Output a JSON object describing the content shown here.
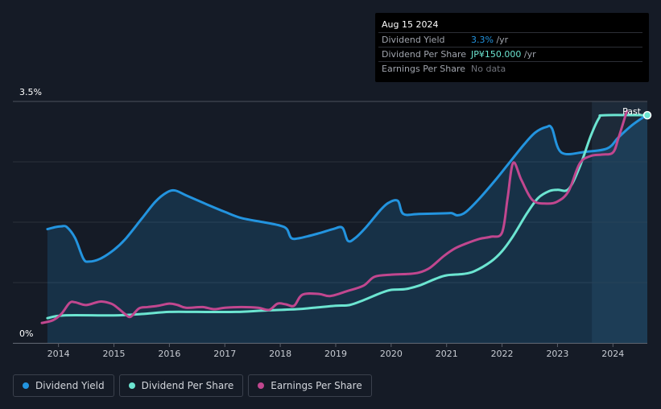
{
  "tooltip": {
    "date": "Aug 15 2024",
    "rows": [
      {
        "label": "Dividend Yield",
        "value": "3.3%",
        "unit": " /yr",
        "color": "#2394df"
      },
      {
        "label": "Dividend Per Share",
        "value": "JP¥150.000",
        "unit": " /yr",
        "color": "#6ce5d1"
      },
      {
        "label": "Earnings Per Share",
        "value": "No data",
        "unit": "",
        "color": "#70737b"
      }
    ]
  },
  "legend": [
    {
      "label": "Dividend Yield",
      "color": "#2394df"
    },
    {
      "label": "Dividend Per Share",
      "color": "#6ce5d1"
    },
    {
      "label": "Earnings Per Share",
      "color": "#c1478f"
    }
  ],
  "chart_data": {
    "type": "line",
    "title": "",
    "xlabel": "",
    "ylabel": "",
    "xlim": [
      2013.7,
      2024.62
    ],
    "ylim": [
      0,
      3.5
    ],
    "y_tick_labels": [
      {
        "value": 0,
        "label": "0%"
      },
      {
        "value": 3.5,
        "label": "3.5%"
      }
    ],
    "x_ticks": [
      2014,
      2015,
      2016,
      2017,
      2018,
      2019,
      2020,
      2021,
      2022,
      2023,
      2024
    ],
    "past_label": "Past",
    "past_start": 2023.62,
    "series": [
      {
        "name": "Dividend Yield",
        "color": "#2394df",
        "area": true,
        "points": [
          [
            2013.8,
            1.65
          ],
          [
            2013.95,
            1.68
          ],
          [
            2014.05,
            1.69
          ],
          [
            2014.15,
            1.68
          ],
          [
            2014.3,
            1.52
          ],
          [
            2014.45,
            1.22
          ],
          [
            2014.55,
            1.18
          ],
          [
            2014.75,
            1.22
          ],
          [
            2015.0,
            1.35
          ],
          [
            2015.2,
            1.5
          ],
          [
            2015.5,
            1.8
          ],
          [
            2015.75,
            2.05
          ],
          [
            2015.95,
            2.18
          ],
          [
            2016.1,
            2.21
          ],
          [
            2016.3,
            2.14
          ],
          [
            2016.7,
            2.0
          ],
          [
            2017.0,
            1.9
          ],
          [
            2017.3,
            1.81
          ],
          [
            2017.7,
            1.75
          ],
          [
            2018.0,
            1.7
          ],
          [
            2018.12,
            1.65
          ],
          [
            2018.2,
            1.52
          ],
          [
            2018.35,
            1.52
          ],
          [
            2018.7,
            1.59
          ],
          [
            2018.95,
            1.65
          ],
          [
            2019.12,
            1.67
          ],
          [
            2019.22,
            1.48
          ],
          [
            2019.35,
            1.52
          ],
          [
            2019.55,
            1.68
          ],
          [
            2019.8,
            1.92
          ],
          [
            2019.95,
            2.03
          ],
          [
            2020.12,
            2.06
          ],
          [
            2020.22,
            1.87
          ],
          [
            2020.5,
            1.87
          ],
          [
            2021.0,
            1.88
          ],
          [
            2021.1,
            1.88
          ],
          [
            2021.2,
            1.85
          ],
          [
            2021.35,
            1.9
          ],
          [
            2021.6,
            2.1
          ],
          [
            2021.9,
            2.38
          ],
          [
            2022.1,
            2.58
          ],
          [
            2022.4,
            2.88
          ],
          [
            2022.6,
            3.05
          ],
          [
            2022.8,
            3.13
          ],
          [
            2022.9,
            3.11
          ],
          [
            2023.07,
            2.76
          ],
          [
            2023.5,
            2.77
          ],
          [
            2023.9,
            2.82
          ],
          [
            2024.1,
            2.98
          ],
          [
            2024.35,
            3.16
          ],
          [
            2024.62,
            3.31
          ]
        ]
      },
      {
        "name": "Dividend Per Share",
        "color": "#6ce5d1",
        "area": false,
        "points": [
          [
            2013.8,
            0.36
          ],
          [
            2014.1,
            0.4
          ],
          [
            2015.0,
            0.4
          ],
          [
            2015.5,
            0.42
          ],
          [
            2016.0,
            0.45
          ],
          [
            2016.5,
            0.45
          ],
          [
            2017.2,
            0.45
          ],
          [
            2017.7,
            0.47
          ],
          [
            2018.3,
            0.49
          ],
          [
            2018.6,
            0.51
          ],
          [
            2019.0,
            0.54
          ],
          [
            2019.25,
            0.55
          ],
          [
            2019.5,
            0.62
          ],
          [
            2019.8,
            0.72
          ],
          [
            2020.0,
            0.77
          ],
          [
            2020.25,
            0.78
          ],
          [
            2020.5,
            0.83
          ],
          [
            2020.8,
            0.93
          ],
          [
            2021.0,
            0.98
          ],
          [
            2021.3,
            1.0
          ],
          [
            2021.5,
            1.04
          ],
          [
            2021.8,
            1.18
          ],
          [
            2022.0,
            1.33
          ],
          [
            2022.2,
            1.55
          ],
          [
            2022.45,
            1.88
          ],
          [
            2022.65,
            2.1
          ],
          [
            2022.85,
            2.2
          ],
          [
            2023.0,
            2.22
          ],
          [
            2023.2,
            2.23
          ],
          [
            2023.4,
            2.55
          ],
          [
            2023.6,
            3.0
          ],
          [
            2023.75,
            3.26
          ],
          [
            2023.85,
            3.3
          ],
          [
            2024.62,
            3.3
          ]
        ]
      },
      {
        "name": "Earnings Per Share",
        "color": "#c1478f",
        "area": false,
        "points": [
          [
            2013.7,
            0.29
          ],
          [
            2013.9,
            0.33
          ],
          [
            2014.05,
            0.42
          ],
          [
            2014.2,
            0.58
          ],
          [
            2014.3,
            0.59
          ],
          [
            2014.5,
            0.55
          ],
          [
            2014.75,
            0.6
          ],
          [
            2014.95,
            0.57
          ],
          [
            2015.08,
            0.5
          ],
          [
            2015.2,
            0.42
          ],
          [
            2015.3,
            0.38
          ],
          [
            2015.45,
            0.5
          ],
          [
            2015.6,
            0.52
          ],
          [
            2015.8,
            0.54
          ],
          [
            2016.0,
            0.57
          ],
          [
            2016.15,
            0.55
          ],
          [
            2016.3,
            0.51
          ],
          [
            2016.6,
            0.52
          ],
          [
            2016.8,
            0.49
          ],
          [
            2017.0,
            0.51
          ],
          [
            2017.3,
            0.52
          ],
          [
            2017.6,
            0.51
          ],
          [
            2017.8,
            0.48
          ],
          [
            2017.95,
            0.57
          ],
          [
            2018.1,
            0.56
          ],
          [
            2018.25,
            0.54
          ],
          [
            2018.4,
            0.7
          ],
          [
            2018.7,
            0.71
          ],
          [
            2018.9,
            0.68
          ],
          [
            2019.2,
            0.75
          ],
          [
            2019.5,
            0.83
          ],
          [
            2019.7,
            0.96
          ],
          [
            2020.0,
            0.99
          ],
          [
            2020.3,
            1.0
          ],
          [
            2020.5,
            1.02
          ],
          [
            2020.7,
            1.09
          ],
          [
            2020.95,
            1.26
          ],
          [
            2021.15,
            1.37
          ],
          [
            2021.35,
            1.44
          ],
          [
            2021.6,
            1.51
          ],
          [
            2021.8,
            1.54
          ],
          [
            2022.0,
            1.6
          ],
          [
            2022.1,
            2.1
          ],
          [
            2022.2,
            2.61
          ],
          [
            2022.35,
            2.36
          ],
          [
            2022.55,
            2.07
          ],
          [
            2022.8,
            2.02
          ],
          [
            2023.0,
            2.05
          ],
          [
            2023.2,
            2.2
          ],
          [
            2023.4,
            2.6
          ],
          [
            2023.6,
            2.71
          ],
          [
            2023.8,
            2.73
          ],
          [
            2024.0,
            2.76
          ],
          [
            2024.1,
            2.97
          ],
          [
            2024.25,
            3.36
          ]
        ]
      }
    ]
  }
}
